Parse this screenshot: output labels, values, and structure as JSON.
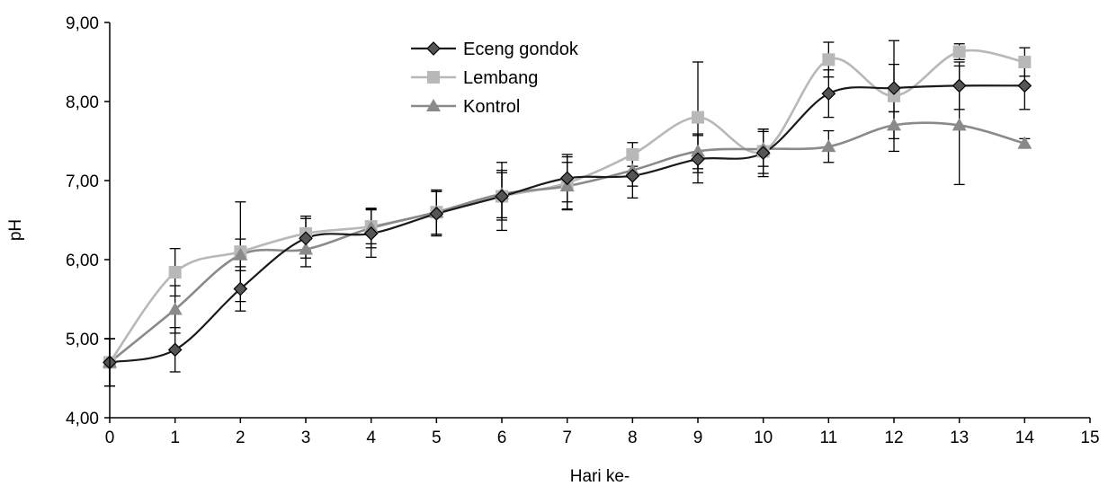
{
  "chart_data": {
    "type": "line",
    "title": "",
    "xlabel": "Hari ke-",
    "ylabel": "pH",
    "xlim": [
      0,
      15
    ],
    "ylim": [
      4,
      9
    ],
    "x_ticks": [
      0,
      1,
      2,
      3,
      4,
      5,
      6,
      7,
      8,
      9,
      10,
      11,
      12,
      13,
      14,
      15
    ],
    "y_ticks": [
      4,
      5,
      6,
      7,
      8,
      9
    ],
    "x_tick_labels": [
      "0",
      "1",
      "2",
      "3",
      "4",
      "5",
      "6",
      "7",
      "8",
      "9",
      "10",
      "11",
      "12",
      "13",
      "14",
      "15"
    ],
    "y_tick_labels": [
      "4,00",
      "5,00",
      "6,00",
      "7,00",
      "8,00",
      "9,00"
    ],
    "grid": false,
    "legend_position": "top-center",
    "error_bars": true,
    "smoothed": true,
    "x": [
      0,
      1,
      2,
      3,
      4,
      5,
      6,
      7,
      8,
      9,
      10,
      11,
      12,
      13,
      14
    ],
    "series": [
      {
        "name": "Eceng gondok",
        "marker": "diamond",
        "line_color": "#1a1a1a",
        "marker_fill": "#555555",
        "values": [
          4.7,
          4.86,
          5.63,
          6.27,
          6.33,
          6.58,
          6.8,
          7.03,
          7.06,
          7.27,
          7.35,
          8.1,
          8.17,
          8.2,
          8.2
        ],
        "errors": [
          0.3,
          0.28,
          0.28,
          0.25,
          0.3,
          0.28,
          0.3,
          0.3,
          0.28,
          0.3,
          0.3,
          0.3,
          0.3,
          0.3,
          0.3
        ]
      },
      {
        "name": "Lembang",
        "marker": "square",
        "line_color": "#b8b8b8",
        "marker_fill": "#b8b8b8",
        "values": [
          4.7,
          5.84,
          6.1,
          6.33,
          6.42,
          6.6,
          6.8,
          6.97,
          7.33,
          7.8,
          7.37,
          8.53,
          8.07,
          8.63,
          8.5
        ],
        "errors": [
          0.3,
          0.3,
          0.63,
          0.22,
          0.22,
          0.28,
          0.43,
          0.33,
          0.15,
          0.7,
          0.28,
          0.22,
          0.7,
          0.1,
          0.18
        ]
      },
      {
        "name": "Kontrol",
        "marker": "triangle",
        "line_color": "#8a8a8a",
        "marker_fill": "#8a8a8a",
        "values": [
          4.7,
          5.37,
          6.06,
          6.13,
          6.4,
          6.6,
          6.83,
          6.93,
          7.13,
          7.37,
          7.4,
          7.43,
          7.7,
          7.7,
          7.47
        ],
        "errors": [
          0.3,
          0.3,
          0.2,
          0.22,
          0.25,
          0.28,
          0.3,
          0.3,
          0.2,
          0.22,
          0.22,
          0.2,
          0.17,
          0.75,
          0.06
        ]
      }
    ]
  }
}
